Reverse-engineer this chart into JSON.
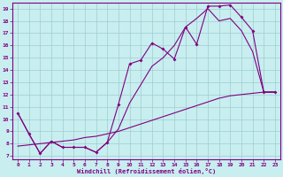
{
  "xlabel": "Windchill (Refroidissement éolien,°C)",
  "background_color": "#c8eef0",
  "line_color": "#800080",
  "xlim": [
    -0.5,
    23.5
  ],
  "ylim": [
    6.7,
    19.5
  ],
  "yticks": [
    7,
    8,
    9,
    10,
    11,
    12,
    13,
    14,
    15,
    16,
    17,
    18,
    19
  ],
  "xticks": [
    0,
    1,
    2,
    3,
    4,
    5,
    6,
    7,
    8,
    9,
    10,
    11,
    12,
    13,
    14,
    15,
    16,
    17,
    18,
    19,
    20,
    21,
    22,
    23
  ],
  "curve1_x": [
    0,
    1,
    2,
    3,
    4,
    5,
    6,
    7,
    8,
    9,
    10,
    11,
    12,
    13,
    14,
    15,
    16,
    17,
    18,
    19,
    20,
    21,
    22,
    23
  ],
  "curve1_y": [
    10.5,
    8.8,
    7.2,
    8.2,
    7.7,
    7.7,
    7.7,
    7.3,
    8.1,
    11.2,
    14.5,
    14.8,
    16.2,
    15.7,
    14.9,
    17.5,
    16.1,
    19.2,
    19.2,
    19.3,
    18.3,
    17.2,
    12.2,
    12.2
  ],
  "curve2_x": [
    0,
    1,
    2,
    3,
    4,
    5,
    6,
    7,
    8,
    9,
    10,
    11,
    12,
    13,
    14,
    15,
    16,
    17,
    18,
    19,
    20,
    21,
    22,
    23
  ],
  "curve2_y": [
    10.5,
    8.8,
    7.2,
    8.2,
    7.7,
    7.7,
    7.7,
    7.3,
    8.1,
    9.2,
    11.3,
    12.8,
    14.3,
    15.0,
    16.0,
    17.5,
    18.2,
    19.0,
    18.0,
    18.2,
    17.2,
    15.5,
    12.2,
    12.2
  ],
  "curve3_x": [
    0,
    1,
    2,
    3,
    4,
    5,
    6,
    7,
    8,
    9,
    10,
    11,
    12,
    13,
    14,
    15,
    16,
    17,
    18,
    19,
    20,
    21,
    22,
    23
  ],
  "curve3_y": [
    7.8,
    7.9,
    8.0,
    8.1,
    8.2,
    8.3,
    8.5,
    8.6,
    8.8,
    9.0,
    9.3,
    9.6,
    9.9,
    10.2,
    10.5,
    10.8,
    11.1,
    11.4,
    11.7,
    11.9,
    12.0,
    12.1,
    12.2,
    12.2
  ]
}
